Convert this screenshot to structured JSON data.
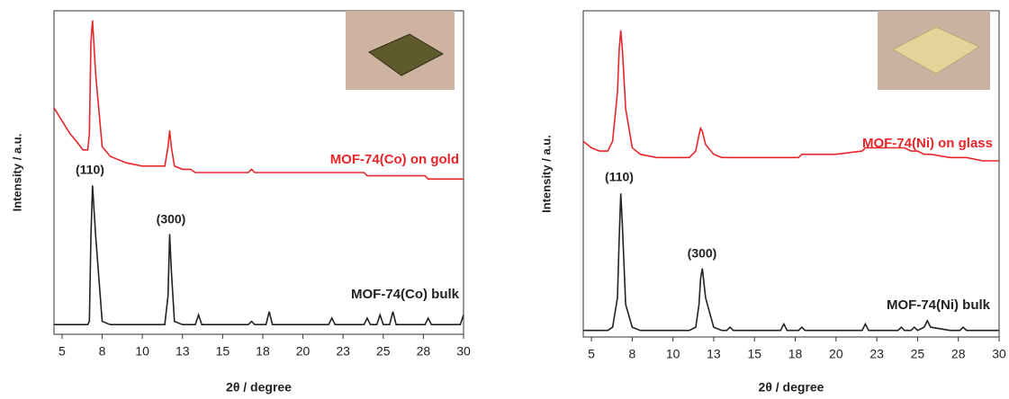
{
  "chart_data": [
    {
      "type": "line",
      "xlabel": "2θ  / degree",
      "ylabel": "Intensity / a.u.",
      "xlim": [
        4.5,
        30
      ],
      "ylim": [
        0,
        100
      ],
      "xticks": [
        5,
        {
          "value": 7.5,
          "label": "8"
        },
        10,
        {
          "value": 12.5,
          "label": "13"
        },
        15,
        {
          "value": 17.5,
          "label": "18"
        },
        20,
        {
          "value": 22.5,
          "label": "23"
        },
        25,
        {
          "value": 27.5,
          "label": "28"
        },
        30
      ],
      "annotations": [
        "(110)",
        "(300)"
      ],
      "x": [
        4.5,
        5,
        5.5,
        6,
        6.3,
        6.6,
        6.7,
        6.8,
        6.9,
        7.1,
        7.5,
        8,
        9,
        10,
        11,
        11.4,
        11.6,
        11.7,
        11.8,
        12,
        12.5,
        13,
        13.3,
        13.5,
        13.7,
        15,
        16,
        16.6,
        16.8,
        17,
        17.7,
        17.9,
        18.1,
        20,
        21.6,
        21.8,
        22,
        23.8,
        24,
        24.2,
        24.6,
        24.8,
        25,
        25.4,
        25.6,
        25.8,
        27,
        27.6,
        27.8,
        28,
        29,
        29.8,
        30
      ],
      "series": [
        {
          "name": "MOF-74(Co) on gold",
          "color": "#e8262a",
          "values": [
            70,
            66,
            62,
            59,
            57,
            57,
            62,
            90,
            97,
            80,
            58,
            55,
            53,
            52,
            52,
            52,
            58,
            63,
            58,
            52,
            51,
            51,
            50,
            50,
            50,
            50,
            50,
            50,
            51,
            50,
            50,
            50,
            50,
            50,
            50,
            50,
            50,
            50,
            49,
            49,
            49,
            49,
            49,
            49,
            49,
            49,
            49,
            49,
            48,
            48,
            48,
            48,
            48
          ]
        },
        {
          "name": "MOF-74(Co) bulk",
          "color": "#222222",
          "values": [
            3,
            3,
            3,
            3,
            3,
            3,
            4,
            30,
            46,
            30,
            4,
            3,
            3,
            3,
            3,
            3,
            12,
            31,
            20,
            4,
            3,
            3,
            3,
            6,
            3,
            3,
            3,
            3,
            4,
            3,
            3,
            7,
            3,
            3,
            3,
            5,
            3,
            3,
            5,
            3,
            3,
            6,
            3,
            3,
            7,
            3,
            3,
            3,
            5,
            3,
            3,
            3,
            6
          ]
        }
      ]
    },
    {
      "type": "line",
      "xlabel": "2θ  / degree",
      "ylabel": "Intensity / a.u.",
      "xlim": [
        4.5,
        30
      ],
      "ylim": [
        0,
        100
      ],
      "xticks": [
        5,
        {
          "value": 7.5,
          "label": "8"
        },
        10,
        {
          "value": 12.5,
          "label": "13"
        },
        15,
        {
          "value": 17.5,
          "label": "18"
        },
        20,
        {
          "value": 22.5,
          "label": "23"
        },
        25,
        {
          "value": 27.5,
          "label": "28"
        },
        30
      ],
      "annotations": [
        "(110)",
        "(300)"
      ],
      "x": [
        4.5,
        5,
        5.5,
        6,
        6.3,
        6.6,
        6.7,
        6.8,
        6.9,
        7.1,
        7.5,
        8,
        9,
        10,
        11,
        11.4,
        11.6,
        11.7,
        11.8,
        12,
        12.5,
        13,
        13.3,
        13.5,
        13.7,
        15,
        16,
        16.6,
        16.8,
        17,
        17.7,
        17.9,
        18.1,
        20,
        21.6,
        21.8,
        22,
        23.8,
        24,
        24.2,
        24.6,
        24.8,
        25,
        25.4,
        25.6,
        25.8,
        27,
        27.6,
        27.8,
        28,
        29,
        29.8,
        30
      ],
      "series": [
        {
          "name": "MOF-74(Ni) on glass",
          "color": "#e8262a",
          "values": [
            60,
            58,
            57,
            57,
            60,
            75,
            88,
            94,
            88,
            70,
            58,
            56,
            55,
            55,
            55,
            57,
            62,
            64,
            63,
            59,
            56,
            55,
            55,
            55,
            55,
            55,
            55,
            55,
            55,
            55,
            55,
            56,
            56,
            56,
            57,
            58,
            58,
            58,
            58,
            58,
            57,
            57,
            57,
            56,
            56,
            56,
            55,
            55,
            55,
            55,
            54,
            54,
            54
          ]
        },
        {
          "name": "MOF-74(Ni) bulk",
          "color": "#222222",
          "values": [
            2,
            2,
            2,
            2,
            3,
            12,
            30,
            44,
            34,
            10,
            3,
            2,
            2,
            2,
            2,
            3,
            10,
            18,
            21,
            12,
            3,
            2,
            2,
            3,
            2,
            2,
            2,
            2,
            4,
            2,
            2,
            3,
            2,
            2,
            2,
            4,
            2,
            2,
            3,
            2,
            2,
            3,
            2,
            3,
            5,
            3,
            2,
            2,
            3,
            2,
            2,
            2,
            2
          ]
        }
      ]
    }
  ]
}
